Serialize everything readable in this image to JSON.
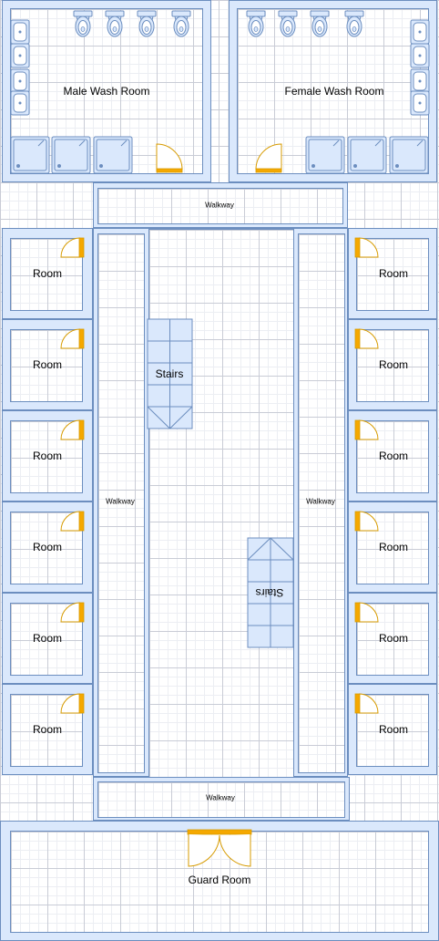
{
  "labels": {
    "male_wash_room": "Male Wash Room",
    "female_wash_room": "Female Wash Room",
    "walkway": "Walkway",
    "room": "Room",
    "stairs": "Stairs",
    "guard_room": "Guard Room"
  },
  "colors": {
    "wall_fill": "#dae8fc",
    "wall_stroke": "#6c8ebf",
    "door": "#f5a800",
    "door_stroke": "#d79b00",
    "grid_major": "#c9ccd6",
    "grid_minor": "#eceef3"
  },
  "icons": [
    "toilet-icon",
    "sink-icon",
    "shower-icon",
    "door-icon",
    "double-door-icon",
    "stairs-icon"
  ]
}
